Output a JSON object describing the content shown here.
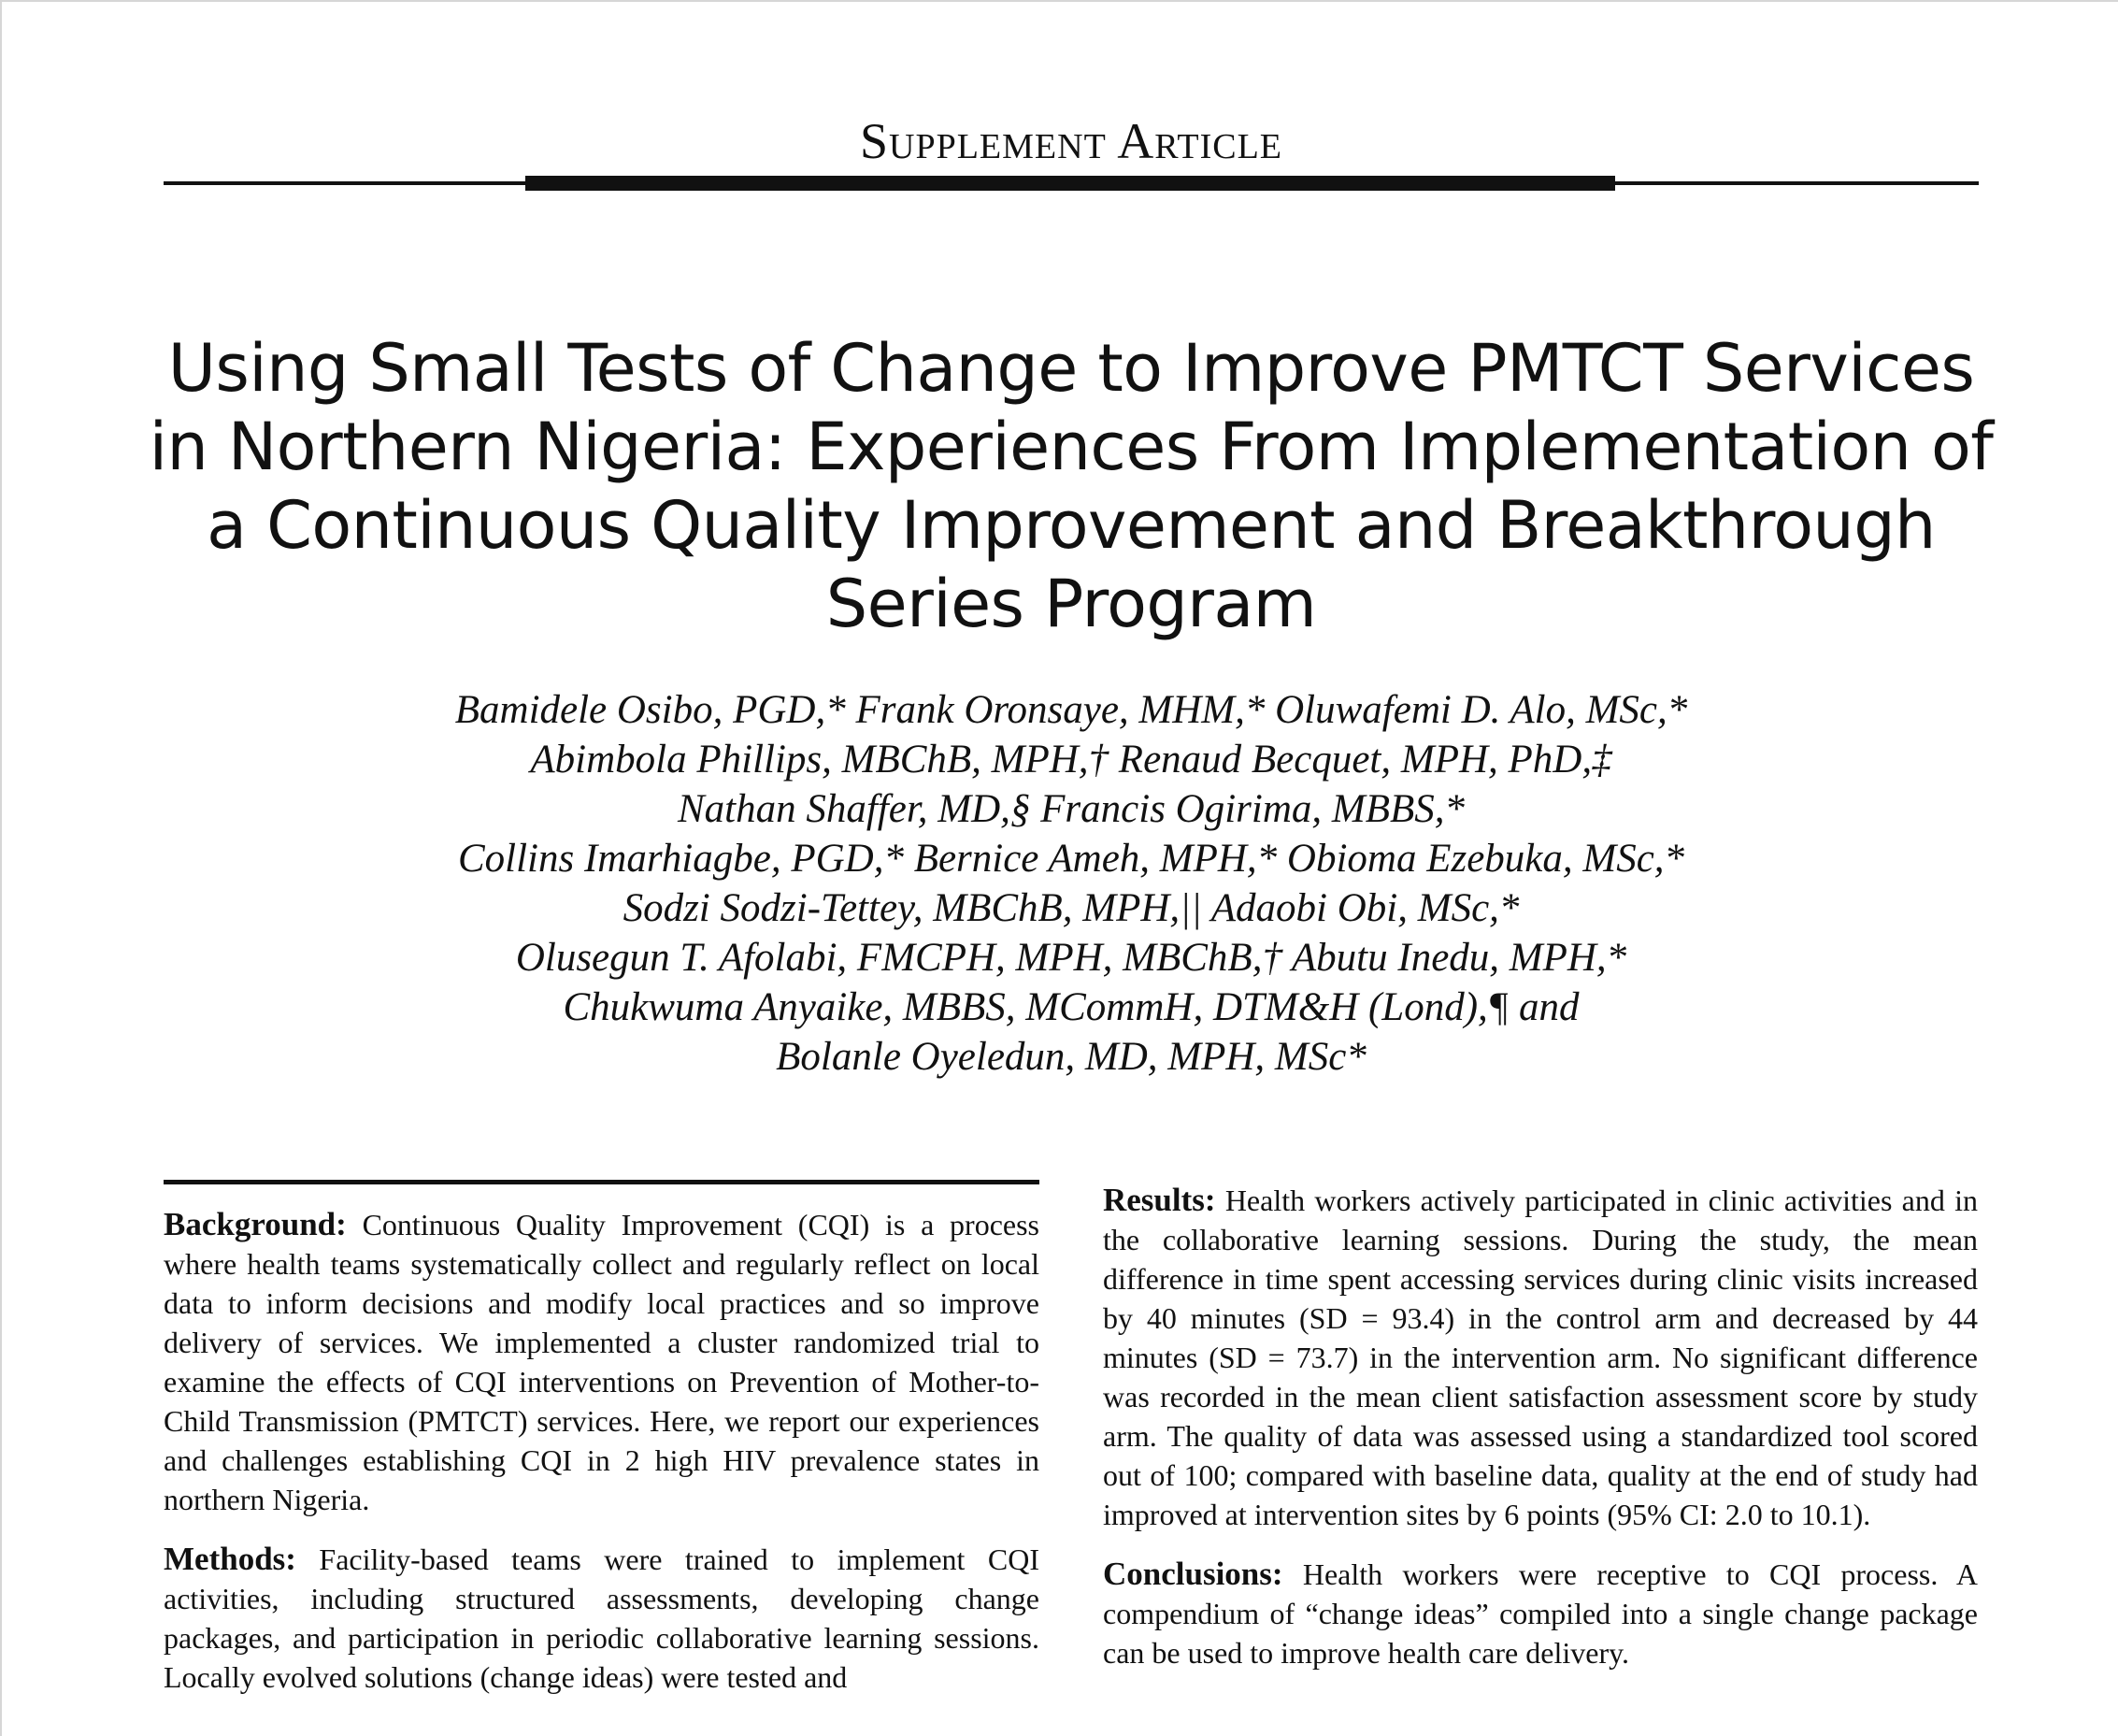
{
  "header": {
    "section_label": "Supplement Article"
  },
  "article": {
    "title": "Using Small Tests of Change to Improve PMTCT Services in Northern Nigeria: Experiences From Implementation of a Continuous Quality Improvement and Breakthrough Series Program",
    "author_lines": [
      "Bamidele Osibo, PGD,* Frank Oronsaye, MHM,* Oluwafemi D. Alo, MSc,*",
      "Abimbola Phillips, MBChB, MPH,† Renaud Becquet, MPH, PhD,‡",
      "Nathan Shaffer, MD,§ Francis Ogirima, MBBS,*",
      "Collins Imarhiagbe, PGD,* Bernice Ameh, MPH,* Obioma Ezebuka, MSc,*",
      "Sodzi Sodzi-Tettey, MBChB, MPH,|| Adaobi Obi, MSc,*",
      "Olusegun T. Afolabi, FMCPH, MPH, MBChB,† Abutu Inedu, MPH,*",
      "Chukwuma Anyaike, MBBS, MCommH, DTM&H (Lond),¶ and",
      "Bolanle Oyeledun, MD, MPH, MSc*"
    ]
  },
  "abstract": {
    "background": {
      "heading": "Background:",
      "text": "Continuous Quality Improvement (CQI) is a process where health teams systematically collect and regularly reflect on local data to inform decisions and modify local practices and so improve delivery of services. We implemented a cluster randomized trial to examine the effects of CQI interventions on Prevention of Mother-to-Child Transmission (PMTCT) services. Here, we report our experiences and challenges establishing CQI in 2 high HIV prevalence states in northern Nigeria."
    },
    "methods": {
      "heading": "Methods:",
      "text": "Facility-based teams were trained to implement CQI activities, including structured assessments, developing change packages, and participation in periodic collaborative learning sessions. Locally evolved solutions (change ideas) were tested and"
    },
    "results": {
      "heading": "Results:",
      "text": "Health workers actively participated in clinic activities and in the collaborative learning sessions. During the study, the mean difference in time spent accessing services during clinic visits increased by 40 minutes (SD = 93.4) in the control arm and decreased by 44 minutes (SD = 73.7) in the intervention arm. No significant difference was recorded in the mean client satisfaction assessment score by study arm. The quality of data was assessed using a standardized tool scored out of 100; compared with baseline data, quality at the end of study had improved at intervention sites by 6 points (95% CI: 2.0 to 10.1)."
    },
    "conclusions": {
      "heading": "Conclusions:",
      "text": "Health workers were receptive to CQI process. A compendium of “change ideas” compiled into a single change package can be used to improve health care delivery."
    }
  }
}
